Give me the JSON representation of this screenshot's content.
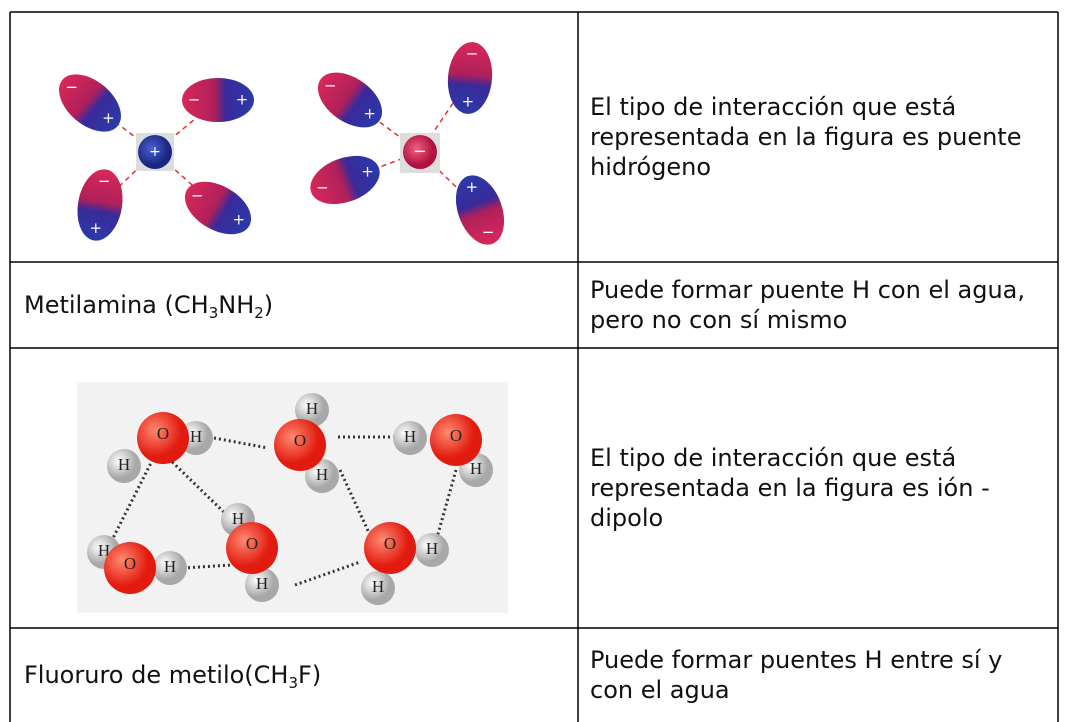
{
  "table": {
    "rows": [
      [
        {
          "plus": "+",
          "minus": "−"
        },
        "El tipo de interacción que está representada en la figura es puente hidrógeno"
      ],
      [
        [
          "Metilamina (CH",
          "3",
          "NH",
          "2",
          ")"
        ],
        "Puede formar puente H con el agua, pero no con sí mismo"
      ],
      [
        {
          "hydrogen": "H",
          "oxygen": "O"
        },
        "El tipo de interacción que está representada en la figura es ión - dipolo"
      ],
      [
        [
          "Fluoruro de metilo(CH",
          "3",
          "F)"
        ],
        "Puede formar puentes H entre sí y con el agua"
      ]
    ]
  }
}
